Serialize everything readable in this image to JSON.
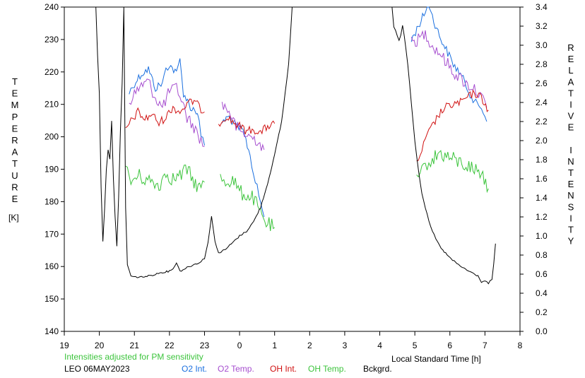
{
  "chart_data": {
    "type": "line",
    "left_axis": {
      "label_letters": [
        "T",
        "E",
        "M",
        "P",
        "E",
        "R",
        "A",
        "T",
        "U",
        "R",
        "E"
      ],
      "unit": "[K]",
      "range": [
        140,
        240
      ],
      "ticks": [
        "140",
        "150",
        "160",
        "170",
        "180",
        "190",
        "200",
        "210",
        "220",
        "230",
        "240"
      ]
    },
    "right_axis": {
      "label_words": [
        [
          "R",
          "E",
          "L",
          "A",
          "T",
          "I",
          "V",
          "E"
        ],
        [
          "I",
          "N",
          "T",
          "E",
          "N",
          "S",
          "I",
          "T",
          "Y"
        ]
      ],
      "range": [
        0.0,
        3.4
      ],
      "ticks": [
        "0.0",
        "0.2",
        "0.4",
        "0.6",
        "0.8",
        "1.0",
        "1.2",
        "1.4",
        "1.6",
        "1.8",
        "2.0",
        "2.2",
        "2.4",
        "2.6",
        "2.8",
        "3.0",
        "3.2",
        "3.4"
      ]
    },
    "x_axis": {
      "label": "Local Standard Time [h]",
      "range": [
        19,
        32
      ],
      "ticks": [
        "19",
        "20",
        "21",
        "22",
        "23",
        "0",
        "1",
        "2",
        "3",
        "4",
        "5",
        "6",
        "7",
        "8"
      ]
    },
    "note": "Intensities adjusted for PM sensitivity",
    "station": "LEO 06MAY2023",
    "series": [
      {
        "name": "O2 Int.",
        "color": "#1a6fdf",
        "axis": "right",
        "segments": [
          [
            [
              20.85,
              2.5
            ],
            [
              21.0,
              2.6
            ],
            [
              21.2,
              2.7
            ],
            [
              21.4,
              2.75
            ],
            [
              21.6,
              2.55
            ],
            [
              21.8,
              2.6
            ],
            [
              21.9,
              2.75
            ],
            [
              22.0,
              2.8
            ],
            [
              22.2,
              2.7
            ],
            [
              22.3,
              2.85
            ],
            [
              22.4,
              2.5
            ],
            [
              22.6,
              2.35
            ],
            [
              22.8,
              2.3
            ],
            [
              22.9,
              2.05
            ],
            [
              23.0,
              1.95
            ]
          ],
          [
            [
              23.5,
              2.2
            ],
            [
              23.7,
              2.25
            ],
            [
              23.9,
              2.15
            ],
            [
              24.1,
              2.1
            ],
            [
              24.3,
              1.85
            ],
            [
              24.4,
              1.65
            ],
            [
              24.5,
              1.5
            ],
            [
              24.6,
              1.35
            ],
            [
              24.7,
              1.2
            ]
          ],
          [
            [
              28.9,
              3.05
            ],
            [
              29.1,
              3.2
            ],
            [
              29.3,
              3.35
            ],
            [
              29.4,
              3.45
            ],
            [
              29.5,
              3.3
            ],
            [
              29.7,
              3.1
            ],
            [
              29.9,
              2.95
            ],
            [
              30.1,
              2.8
            ],
            [
              30.3,
              2.7
            ],
            [
              30.5,
              2.55
            ],
            [
              30.7,
              2.4
            ],
            [
              30.9,
              2.35
            ],
            [
              31.05,
              2.2
            ]
          ]
        ]
      },
      {
        "name": "O2 Temp.",
        "color": "#a64dcf",
        "axis": "left",
        "segments": [
          [
            [
              20.85,
              211
            ],
            [
              21.0,
              213
            ],
            [
              21.2,
              216
            ],
            [
              21.4,
              217
            ],
            [
              21.6,
              212
            ],
            [
              21.8,
              209
            ],
            [
              22.0,
              214
            ],
            [
              22.2,
              215
            ],
            [
              22.3,
              213
            ],
            [
              22.5,
              206
            ],
            [
              22.7,
              203
            ],
            [
              22.9,
              199
            ],
            [
              23.0,
              197
            ]
          ],
          [
            [
              23.5,
              210
            ],
            [
              23.7,
              208
            ],
            [
              23.9,
              203
            ],
            [
              24.1,
              201
            ],
            [
              24.3,
              200
            ],
            [
              24.5,
              199
            ],
            [
              24.7,
              196
            ]
          ],
          [
            [
              28.9,
              229
            ],
            [
              29.1,
              230
            ],
            [
              29.3,
              232
            ],
            [
              29.5,
              228
            ],
            [
              29.7,
              226
            ],
            [
              29.9,
              223
            ],
            [
              30.1,
              220
            ],
            [
              30.3,
              218
            ],
            [
              30.5,
              216
            ],
            [
              30.7,
              215
            ],
            [
              30.9,
              212
            ],
            [
              31.05,
              209
            ]
          ]
        ]
      },
      {
        "name": "OH Int.",
        "color": "#d01010",
        "axis": "right",
        "segments": [
          [
            [
              20.75,
              2.12
            ],
            [
              20.9,
              2.2
            ],
            [
              21.1,
              2.3
            ],
            [
              21.3,
              2.22
            ],
            [
              21.5,
              2.28
            ],
            [
              21.7,
              2.18
            ],
            [
              21.9,
              2.25
            ],
            [
              22.1,
              2.35
            ],
            [
              22.3,
              2.3
            ],
            [
              22.5,
              2.38
            ],
            [
              22.7,
              2.42
            ],
            [
              22.85,
              2.35
            ],
            [
              23.0,
              2.3
            ]
          ],
          [
            [
              23.4,
              2.18
            ],
            [
              23.6,
              2.25
            ],
            [
              23.8,
              2.2
            ],
            [
              24.0,
              2.15
            ],
            [
              24.2,
              2.1
            ],
            [
              24.4,
              2.12
            ],
            [
              24.6,
              2.08
            ],
            [
              24.8,
              2.15
            ],
            [
              25.0,
              2.18
            ]
          ],
          [
            [
              29.05,
              1.75
            ],
            [
              29.2,
              1.9
            ],
            [
              29.35,
              2.05
            ],
            [
              29.5,
              2.15
            ],
            [
              29.7,
              2.28
            ],
            [
              29.9,
              2.35
            ],
            [
              30.1,
              2.38
            ],
            [
              30.3,
              2.4
            ],
            [
              30.5,
              2.45
            ],
            [
              30.7,
              2.5
            ],
            [
              30.9,
              2.45
            ],
            [
              31.1,
              2.32
            ]
          ]
        ]
      },
      {
        "name": "OH Temp.",
        "color": "#3cc43c",
        "axis": "left",
        "segments": [
          [
            [
              20.75,
              190
            ],
            [
              20.9,
              186
            ],
            [
              21.1,
              188
            ],
            [
              21.3,
              187
            ],
            [
              21.5,
              186
            ],
            [
              21.7,
              185
            ],
            [
              21.9,
              189
            ],
            [
              22.1,
              187
            ],
            [
              22.3,
              188
            ],
            [
              22.5,
              190
            ],
            [
              22.7,
              186
            ],
            [
              22.9,
              184
            ],
            [
              23.0,
              186
            ]
          ],
          [
            [
              23.45,
              188
            ],
            [
              23.6,
              186
            ],
            [
              23.8,
              187
            ],
            [
              24.0,
              183
            ],
            [
              24.2,
              182
            ],
            [
              24.4,
              181
            ],
            [
              24.6,
              176
            ],
            [
              24.8,
              173
            ],
            [
              25.0,
              172
            ]
          ],
          [
            [
              29.05,
              186
            ],
            [
              29.2,
              189
            ],
            [
              29.35,
              192
            ],
            [
              29.5,
              193
            ],
            [
              29.7,
              195
            ],
            [
              29.9,
              194
            ],
            [
              30.1,
              193
            ],
            [
              30.3,
              192
            ],
            [
              30.5,
              191
            ],
            [
              30.7,
              190
            ],
            [
              30.9,
              189
            ],
            [
              31.1,
              184
            ]
          ]
        ]
      },
      {
        "name": "Bckgrd.",
        "color": "#000000",
        "axis": "right",
        "segments": [
          [
            [
              19.9,
              3.4
            ],
            [
              19.95,
              2.9
            ],
            [
              20.0,
              2.5
            ],
            [
              20.05,
              1.5
            ],
            [
              20.1,
              0.95
            ],
            [
              20.15,
              1.3
            ],
            [
              20.2,
              1.7
            ],
            [
              20.25,
              1.9
            ],
            [
              20.3,
              1.8
            ],
            [
              20.35,
              2.2
            ],
            [
              20.4,
              1.6
            ],
            [
              20.45,
              1.2
            ],
            [
              20.5,
              0.9
            ],
            [
              20.55,
              1.4
            ],
            [
              20.6,
              2.1
            ],
            [
              20.65,
              2.6
            ],
            [
              20.7,
              3.4
            ],
            [
              20.75,
              1.3
            ],
            [
              20.8,
              0.7
            ],
            [
              20.9,
              0.58
            ],
            [
              21.0,
              0.57
            ],
            [
              21.2,
              0.57
            ],
            [
              21.4,
              0.58
            ],
            [
              21.6,
              0.6
            ],
            [
              21.8,
              0.62
            ],
            [
              22.0,
              0.63
            ],
            [
              22.1,
              0.66
            ],
            [
              22.2,
              0.72
            ],
            [
              22.3,
              0.63
            ],
            [
              22.5,
              0.67
            ],
            [
              22.7,
              0.7
            ],
            [
              22.9,
              0.73
            ],
            [
              23.0,
              0.77
            ],
            [
              23.1,
              0.93
            ],
            [
              23.2,
              1.2
            ],
            [
              23.3,
              0.95
            ],
            [
              23.4,
              0.82
            ],
            [
              23.6,
              0.86
            ],
            [
              23.8,
              0.93
            ],
            [
              24.0,
              1.0
            ],
            [
              24.2,
              1.05
            ],
            [
              24.4,
              1.15
            ],
            [
              24.6,
              1.3
            ],
            [
              24.8,
              1.55
            ],
            [
              25.0,
              1.85
            ],
            [
              25.2,
              2.2
            ],
            [
              25.3,
              2.5
            ],
            [
              25.4,
              2.8
            ],
            [
              25.45,
              3.1
            ],
            [
              25.5,
              3.4
            ]
          ],
          [
            [
              28.35,
              3.4
            ],
            [
              28.4,
              3.2
            ],
            [
              28.5,
              3.1
            ],
            [
              28.55,
              3.05
            ],
            [
              28.6,
              3.1
            ],
            [
              28.65,
              3.2
            ],
            [
              28.7,
              3.1
            ],
            [
              28.8,
              2.8
            ],
            [
              28.9,
              2.4
            ],
            [
              29.0,
              2.0
            ],
            [
              29.1,
              1.7
            ],
            [
              29.2,
              1.45
            ],
            [
              29.3,
              1.3
            ],
            [
              29.4,
              1.15
            ],
            [
              29.5,
              1.05
            ],
            [
              29.6,
              0.97
            ],
            [
              29.7,
              0.9
            ],
            [
              29.8,
              0.85
            ],
            [
              30.0,
              0.77
            ],
            [
              30.2,
              0.71
            ],
            [
              30.4,
              0.66
            ],
            [
              30.6,
              0.62
            ],
            [
              30.8,
              0.58
            ],
            [
              30.9,
              0.52
            ],
            [
              31.0,
              0.53
            ],
            [
              31.1,
              0.5
            ],
            [
              31.2,
              0.55
            ],
            [
              31.25,
              0.7
            ],
            [
              31.3,
              0.92
            ]
          ]
        ]
      }
    ]
  }
}
